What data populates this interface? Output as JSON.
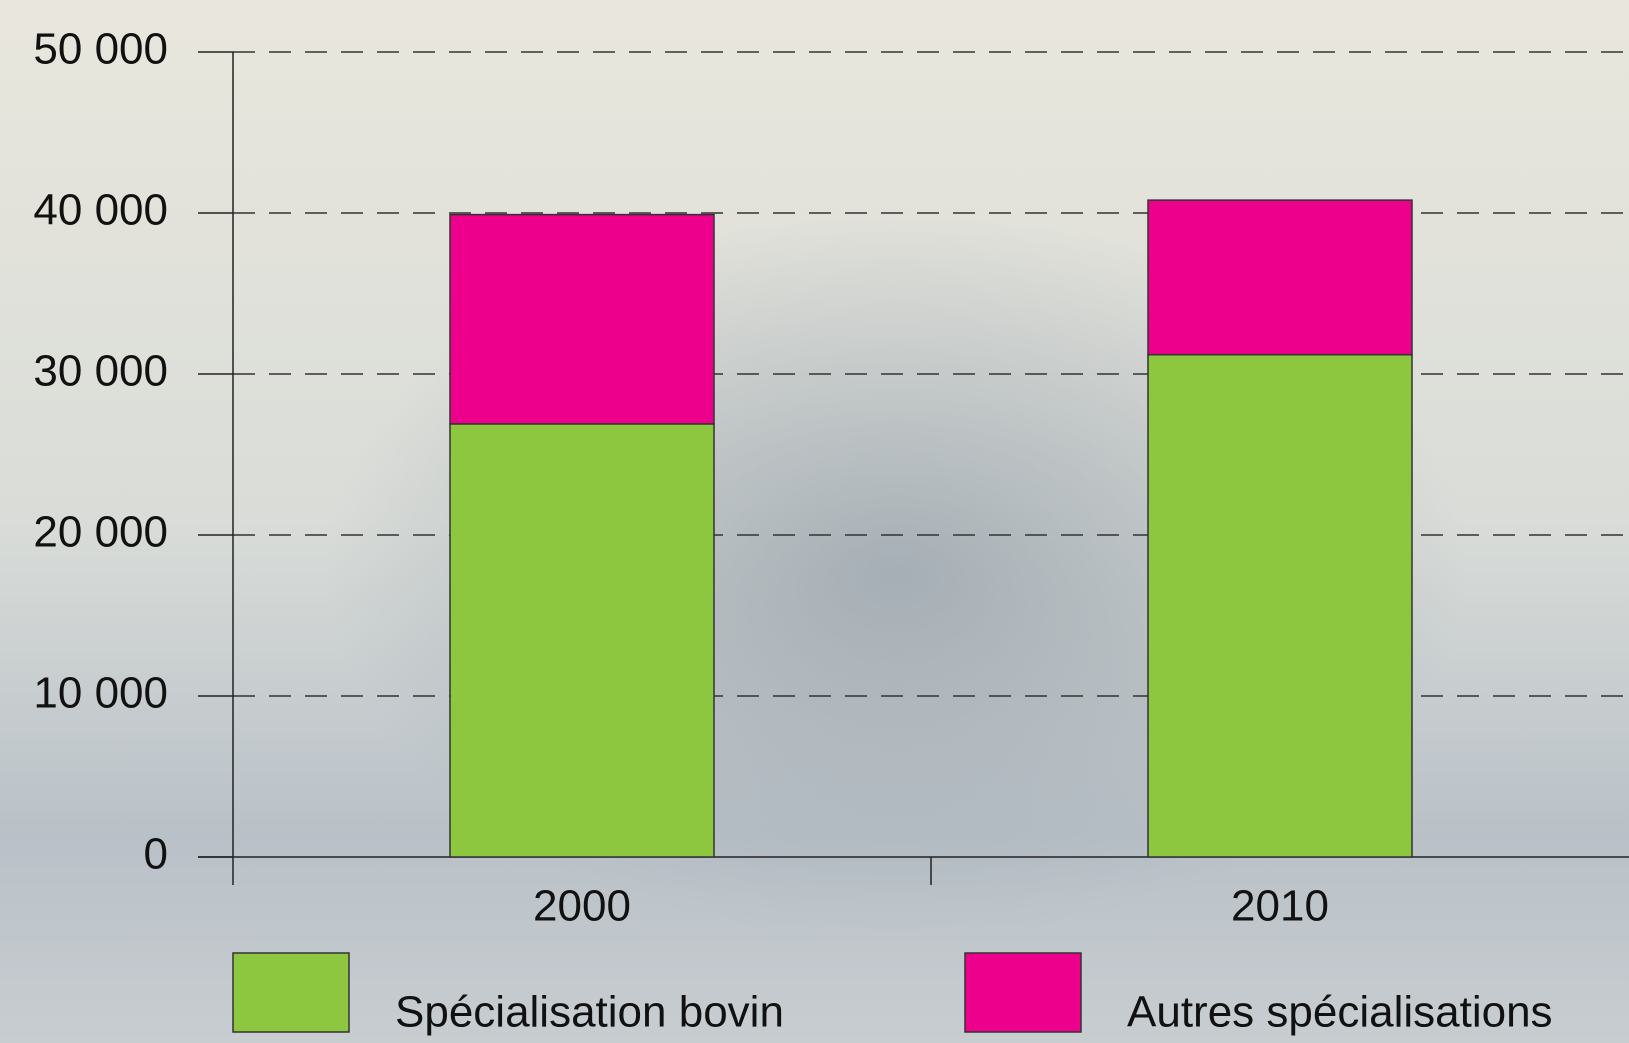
{
  "chart_data": {
    "type": "stacked-bar",
    "categories": [
      "2000",
      "2010"
    ],
    "series": [
      {
        "name": "Spécialisation bovin",
        "color": "#8dc63f",
        "values": [
          26900,
          31200
        ]
      },
      {
        "name": "Autres spécialisations",
        "color": "#ec008c",
        "values": [
          13000,
          9600
        ]
      }
    ],
    "ylim": [
      0,
      50000
    ],
    "yticks": [
      {
        "value": 0,
        "label": "0"
      },
      {
        "value": 10000,
        "label": "10 000"
      },
      {
        "value": 20000,
        "label": "20 000"
      },
      {
        "value": 30000,
        "label": "30 000"
      },
      {
        "value": 40000,
        "label": "40 000"
      },
      {
        "value": 50000,
        "label": "50 000"
      }
    ],
    "grid": true
  }
}
